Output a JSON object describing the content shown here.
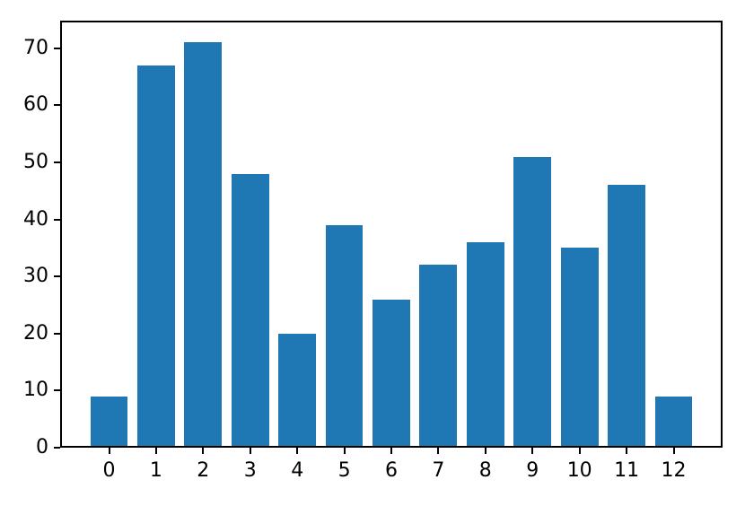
{
  "chart_data": {
    "type": "bar",
    "categories": [
      0,
      1,
      2,
      3,
      4,
      5,
      6,
      7,
      8,
      9,
      10,
      11,
      12
    ],
    "values": [
      9,
      67,
      71,
      48,
      20,
      39,
      26,
      32,
      36,
      51,
      35,
      46,
      9
    ],
    "title": "",
    "xlabel": "",
    "ylabel": "",
    "xlim": [
      -1.04,
      13.04
    ],
    "ylim": [
      0,
      74.8
    ],
    "yticks": [
      0,
      10,
      20,
      30,
      40,
      50,
      60,
      70
    ],
    "xticks": [
      0,
      1,
      2,
      3,
      4,
      5,
      6,
      7,
      8,
      9,
      10,
      11,
      12
    ],
    "bar_width_units": 0.8,
    "bar_color": "#1f77b4",
    "spine_color": "#000000",
    "tick_color": "#000000",
    "text_color": "#000000",
    "background": "#ffffff",
    "grid": false,
    "legend": null
  }
}
